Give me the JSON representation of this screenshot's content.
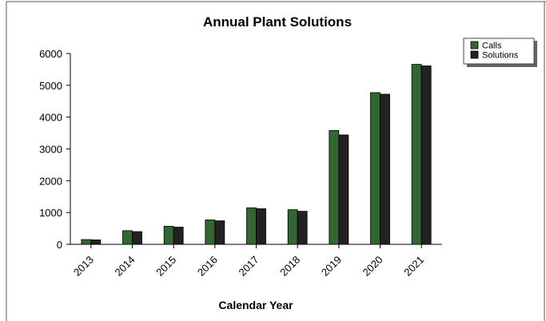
{
  "chart_data": {
    "type": "bar",
    "title": "Annual Plant Solutions",
    "xlabel": "Calendar Year",
    "ylabel": "",
    "categories": [
      "2013",
      "2014",
      "2015",
      "2016",
      "2017",
      "2018",
      "2019",
      "2020",
      "2021"
    ],
    "series": [
      {
        "name": "Calls",
        "color": "#336633",
        "values": [
          150,
          430,
          570,
          770,
          1150,
          1090,
          3580,
          4770,
          5660
        ]
      },
      {
        "name": "Solutions",
        "color": "#222222",
        "values": [
          140,
          400,
          540,
          740,
          1120,
          1040,
          3440,
          4720,
          5610
        ]
      }
    ],
    "ylim": [
      0,
      6000
    ],
    "yticks": [
      "0",
      "1000",
      "2000",
      "3000",
      "4000",
      "5000",
      "6000"
    ],
    "grid": false,
    "legend": "top-right"
  }
}
